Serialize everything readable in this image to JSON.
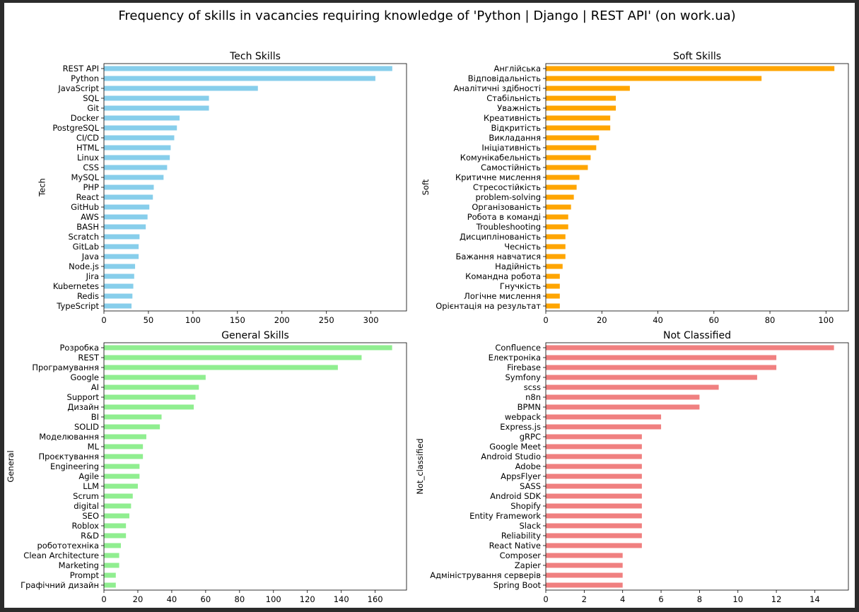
{
  "figure": {
    "title": "Frequency of skills in vacancies requiring knowledge of 'Python | Django | REST API' (on work.ua)"
  },
  "chart_data": [
    {
      "type": "bar",
      "orientation": "horizontal",
      "title": "Tech Skills",
      "ylabel": "Tech",
      "xlabel": "",
      "color": "#87CEEB",
      "xlim": [
        0,
        340
      ],
      "xticks": [
        0,
        50,
        100,
        150,
        200,
        250,
        300
      ],
      "categories": [
        "REST API",
        "Python",
        "JavaScript",
        "SQL",
        "Git",
        "Docker",
        "PostgreSQL",
        "CI/CD",
        "HTML",
        "Linux",
        "CSS",
        "MySQL",
        "PHP",
        "React",
        "GitHub",
        "AWS",
        "BASH",
        "Scratch",
        "GitLab",
        "Java",
        "Node.js",
        "Jira",
        "Kubernetes",
        "Redis",
        "TypeScript"
      ],
      "values": [
        324,
        305,
        173,
        118,
        118,
        85,
        82,
        79,
        75,
        74,
        71,
        67,
        56,
        55,
        51,
        49,
        47,
        40,
        39,
        39,
        35,
        34,
        33,
        32,
        31
      ]
    },
    {
      "type": "bar",
      "orientation": "horizontal",
      "title": "Soft Skills",
      "ylabel": "Soft",
      "xlabel": "",
      "color": "#FFA500",
      "xlim": [
        0,
        108
      ],
      "xticks": [
        0,
        20,
        40,
        60,
        80,
        100
      ],
      "categories": [
        "Англійська",
        "Відповідальність",
        "Аналітичні здібності",
        "Стабільність",
        "Уважність",
        "Креативність",
        "Відкритість",
        "Викладання",
        "Ініціативність",
        "Комунікабельність",
        "Самостійність",
        "Критичне мислення",
        "Стресостійкість",
        "problem-solving",
        "Організованість",
        "Робота в команді",
        "Troubleshooting",
        "Дисциплінованість",
        "Чесність",
        "Бажання навчатися",
        "Надійність",
        "Командна робота",
        "Гнучкість",
        "Логічне мислення",
        "Орієнтація на результат"
      ],
      "values": [
        103,
        77,
        30,
        25,
        25,
        23,
        23,
        19,
        18,
        16,
        15,
        12,
        11,
        10,
        9,
        8,
        8,
        7,
        7,
        7,
        6,
        5,
        5,
        5,
        5
      ]
    },
    {
      "type": "bar",
      "orientation": "horizontal",
      "title": "General Skills",
      "ylabel": "General",
      "xlabel": "",
      "color": "#90EE90",
      "xlim": [
        0,
        178.5
      ],
      "xticks": [
        0,
        20,
        40,
        60,
        80,
        100,
        120,
        140,
        160
      ],
      "categories": [
        "Розробка",
        "REST",
        "Програмування",
        "Google",
        "AI",
        "Support",
        "Дизайн",
        "BI",
        "SOLID",
        "Моделювання",
        "ML",
        "Проєктування",
        "Engineering",
        "Agile",
        "LLM",
        "Scrum",
        "digital",
        "SEO",
        "Roblox",
        "R&D",
        "робототехніка",
        "Clean Architecture",
        "Marketing",
        "Prompt",
        "Графічний дизайн"
      ],
      "values": [
        170,
        152,
        138,
        60,
        56,
        54,
        53,
        34,
        33,
        25,
        23,
        23,
        21,
        21,
        20,
        17,
        16,
        15,
        13,
        13,
        10,
        9,
        9,
        7,
        7
      ]
    },
    {
      "type": "bar",
      "orientation": "horizontal",
      "title": "Not Classified",
      "ylabel": "Not_classified",
      "xlabel": "",
      "color": "#F08080",
      "xlim": [
        0,
        15.75
      ],
      "xticks": [
        0,
        2,
        4,
        6,
        8,
        10,
        12,
        14
      ],
      "categories": [
        "Confluence",
        "Електроніка",
        "Firebase",
        "Symfony",
        "scss",
        "n8n",
        "BPMN",
        "webpack",
        "Express.js",
        "gRPC",
        "Google Meet",
        "Android Studio",
        "Adobe",
        "AppsFlyer",
        "SASS",
        "Android SDK",
        "Shopify",
        "Entity Framework",
        "Slack",
        "Reliability",
        "React Native",
        "Composer",
        "Zapier",
        "Адміністрування серверів",
        "Spring Boot"
      ],
      "values": [
        15,
        12,
        12,
        11,
        9,
        8,
        8,
        6,
        6,
        5,
        5,
        5,
        5,
        5,
        5,
        5,
        5,
        5,
        5,
        5,
        5,
        4,
        4,
        4,
        4
      ]
    }
  ]
}
